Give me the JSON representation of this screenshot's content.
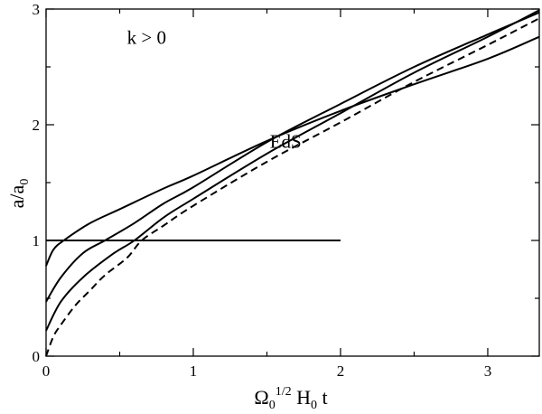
{
  "chart_data": {
    "type": "line",
    "title": "",
    "xlabel": {
      "base": "Ω",
      "base_sub": "0",
      "exponent": "1/2",
      "mid": " H",
      "mid_sub": "0",
      "tail": " t"
    },
    "ylabel": {
      "base": "a/a",
      "base_sub": "0"
    },
    "xlim": [
      0,
      3.35
    ],
    "ylim": [
      0,
      3
    ],
    "xticks": [
      0,
      1,
      2,
      3
    ],
    "yticks": [
      0,
      1,
      2,
      3
    ],
    "annotations": [
      {
        "text": "k > 0",
        "x": 0.55,
        "y": 2.7
      },
      {
        "text": "EdS",
        "x": 1.52,
        "y": 1.8
      }
    ],
    "grid": false,
    "legend": "none",
    "series": [
      {
        "style": "solid",
        "points": [
          [
            0,
            1
          ],
          [
            2,
            1
          ]
        ]
      },
      {
        "style": "solid",
        "points": [
          [
            0,
            0.78
          ],
          [
            0.05,
            0.92
          ],
          [
            0.12,
            1.0
          ],
          [
            0.3,
            1.15
          ],
          [
            0.5,
            1.27
          ],
          [
            0.8,
            1.45
          ],
          [
            1.0,
            1.56
          ],
          [
            1.5,
            1.86
          ],
          [
            2.0,
            2.12
          ],
          [
            2.5,
            2.35
          ],
          [
            3.0,
            2.57
          ],
          [
            3.35,
            2.76
          ]
        ]
      },
      {
        "style": "solid",
        "points": [
          [
            0,
            0.47
          ],
          [
            0.1,
            0.68
          ],
          [
            0.25,
            0.89
          ],
          [
            0.4,
            1.0
          ],
          [
            0.6,
            1.15
          ],
          [
            0.8,
            1.32
          ],
          [
            1.0,
            1.46
          ],
          [
            1.5,
            1.85
          ],
          [
            2.0,
            2.18
          ],
          [
            2.5,
            2.5
          ],
          [
            3.0,
            2.78
          ],
          [
            3.35,
            2.97
          ]
        ]
      },
      {
        "style": "solid",
        "points": [
          [
            0,
            0.22
          ],
          [
            0.1,
            0.47
          ],
          [
            0.25,
            0.68
          ],
          [
            0.45,
            0.88
          ],
          [
            0.6,
            1.0
          ],
          [
            0.8,
            1.2
          ],
          [
            1.0,
            1.36
          ],
          [
            1.5,
            1.75
          ],
          [
            2.0,
            2.1
          ],
          [
            2.5,
            2.45
          ],
          [
            3.0,
            2.76
          ],
          [
            3.35,
            2.99
          ]
        ]
      },
      {
        "style": "dashed",
        "points": [
          [
            0,
            0
          ],
          [
            0.05,
            0.17
          ],
          [
            0.1,
            0.27
          ],
          [
            0.2,
            0.44
          ],
          [
            0.3,
            0.57
          ],
          [
            0.4,
            0.7
          ],
          [
            0.55,
            0.85
          ],
          [
            0.65,
            1.0
          ],
          [
            0.8,
            1.13
          ],
          [
            1.0,
            1.3
          ],
          [
            1.5,
            1.68
          ],
          [
            2.0,
            2.02
          ],
          [
            2.5,
            2.37
          ],
          [
            3.0,
            2.69
          ],
          [
            3.35,
            2.92
          ]
        ]
      }
    ]
  }
}
